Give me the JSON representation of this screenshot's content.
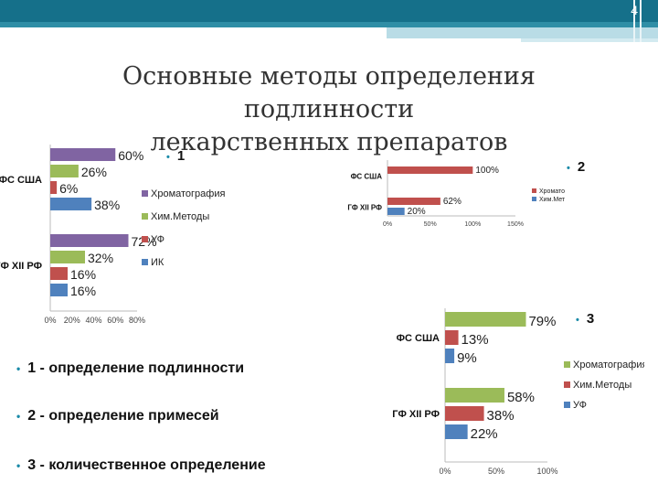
{
  "slide": {
    "number": "4",
    "title_line1": "Основные методы определения подлинности",
    "title_line2": "лекарственных препаратов",
    "bullets": [
      "1 - определение подлинности",
      "2 -  определение примесей",
      "3 - количественное определение"
    ],
    "chart_markers": [
      "1",
      "2",
      "3"
    ]
  },
  "colors": {
    "purple": "#8064a2",
    "green": "#9bbb59",
    "red": "#c0504d",
    "blue": "#4f81bd",
    "band": "#15708a"
  },
  "chart_data": [
    {
      "type": "bar",
      "orientation": "horizontal",
      "categories": [
        "ФС США",
        "ГФ XII РФ"
      ],
      "series": [
        {
          "name": "Хроматография",
          "values": [
            60,
            72
          ]
        },
        {
          "name": "Хим.Методы",
          "values": [
            26,
            32
          ]
        },
        {
          "name": "УФ",
          "values": [
            6,
            16
          ]
        },
        {
          "name": "ИК",
          "values": [
            38,
            16
          ]
        }
      ],
      "value_labels": [
        [
          "60%",
          "26%",
          "6%",
          "38%"
        ],
        [
          "72%",
          "32%",
          "16%",
          "16%"
        ]
      ],
      "xticks": [
        "0%",
        "20%",
        "40%",
        "60%",
        "80%"
      ],
      "xlim": [
        0,
        80
      ],
      "legend": "right"
    },
    {
      "type": "bar",
      "orientation": "horizontal",
      "categories": [
        "ФС США",
        "ГФ XII РФ"
      ],
      "series": [
        {
          "name": "Хроматография",
          "values": [
            100,
            62
          ]
        },
        {
          "name": "Хим.Методы",
          "values": [
            0,
            20
          ]
        }
      ],
      "value_labels": [
        [
          "100%",
          ""
        ],
        [
          "62%",
          "20%"
        ]
      ],
      "xticks": [
        "0%",
        "50%",
        "100%",
        "150%"
      ],
      "xlim": [
        0,
        150
      ],
      "legend": "right"
    },
    {
      "type": "bar",
      "orientation": "horizontal",
      "categories": [
        "ФС США",
        "ГФ XII РФ"
      ],
      "series": [
        {
          "name": "Хроматография",
          "values": [
            79,
            58
          ]
        },
        {
          "name": "Хим.Методы",
          "values": [
            13,
            38
          ]
        },
        {
          "name": "УФ",
          "values": [
            9,
            22
          ]
        }
      ],
      "value_labels": [
        [
          "79%",
          "13%",
          "9%"
        ],
        [
          "58%",
          "38%",
          "22%"
        ]
      ],
      "xticks": [
        "0%",
        "50%",
        "100%"
      ],
      "xlim": [
        0,
        100
      ],
      "legend": "right"
    }
  ]
}
